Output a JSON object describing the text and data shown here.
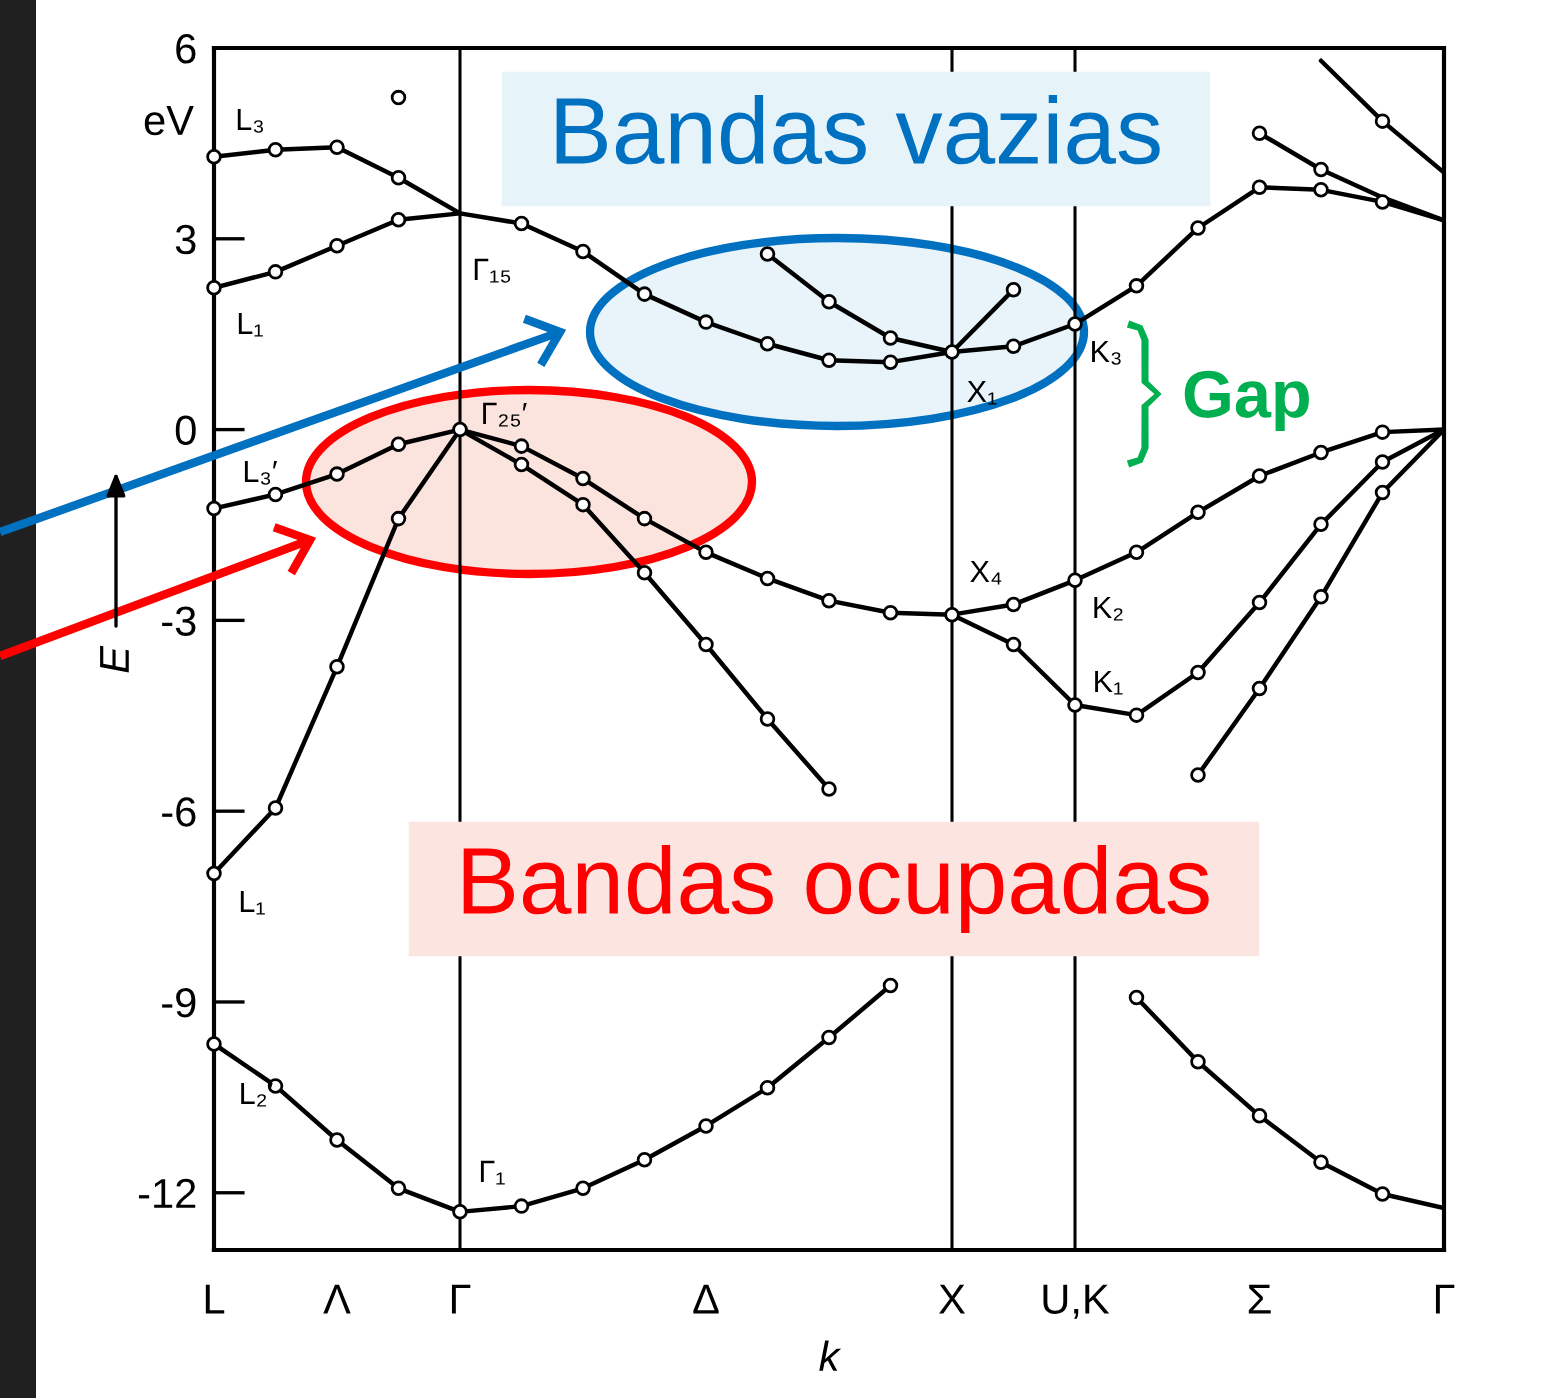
{
  "chart_data": {
    "type": "line",
    "xlabel": "k",
    "ylabel": "E",
    "categories": [
      "L",
      null,
      "Λ",
      null,
      "Γ",
      null,
      null,
      null,
      "Δ",
      null,
      null,
      null,
      "X",
      null,
      "U,K",
      null,
      null,
      "Σ",
      null,
      null,
      "Γ"
    ],
    "ylim": [
      -12.9,
      6
    ],
    "yticks": [
      -12,
      -9,
      -6,
      -3,
      0,
      3,
      6
    ],
    "ref_lines": [
      {
        "axis": "x",
        "value": "Γ",
        "color": "#000000"
      },
      {
        "axis": "x",
        "value": "X",
        "color": "#000000"
      },
      {
        "axis": "x",
        "value": "U,K",
        "color": "#000000"
      }
    ],
    "marker": "none",
    "line_style": "solid",
    "series": [
      {
        "color": "#000000",
        "values": [
          -9.66,
          -10.32,
          -11.17,
          -11.93,
          -12.3,
          -12.21,
          -11.93,
          -11.48,
          -10.95,
          -10.35,
          -9.56,
          -8.74,
          null,
          null,
          null,
          -8.93,
          -9.94,
          -10.79,
          -11.52,
          -12.02,
          -12.24
        ]
      },
      {
        "type": "scatter",
        "marker": "circle",
        "color": "#000000",
        "values": [
          -9.66,
          -10.32,
          -11.17,
          -11.93,
          -12.3,
          -12.21,
          -11.93,
          -11.48,
          -10.95,
          -10.35,
          -9.56,
          -8.74,
          null,
          null,
          null,
          -8.93,
          -9.94,
          -10.79,
          -11.52,
          -12.02,
          null
        ]
      },
      {
        "color": "#000000",
        "values": [
          -6.98,
          -5.95,
          -3.73,
          -1.4,
          0,
          -0.55,
          -1.18,
          -2.25,
          -3.38,
          -4.55,
          -5.65,
          null,
          null,
          null,
          null,
          null,
          -5.43,
          -4.07,
          -2.63,
          -0.99,
          0
        ]
      },
      {
        "type": "scatter",
        "marker": "circle",
        "color": "#000000",
        "values": [
          -6.98,
          -5.95,
          -3.73,
          -1.4,
          0,
          -0.55,
          -1.18,
          -2.25,
          -3.38,
          -4.55,
          -5.65,
          null,
          null,
          null,
          null,
          null,
          -5.43,
          -4.07,
          -2.63,
          -0.99,
          null
        ]
      },
      {
        "color": "#000000",
        "values": [
          -1.24,
          -1.02,
          -0.7,
          -0.23,
          0,
          -0.26,
          -0.77,
          -1.4,
          -1.93,
          -2.34,
          -2.69,
          -2.88,
          -2.91,
          -3.38,
          -4.33,
          -4.49,
          -3.82,
          -2.72,
          -1.49,
          -0.51,
          0
        ]
      },
      {
        "type": "scatter",
        "marker": "circle",
        "color": "#000000",
        "values": [
          -1.24,
          -1.02,
          -0.7,
          -0.23,
          null,
          -0.26,
          -0.77,
          -1.4,
          -1.93,
          -2.34,
          -2.69,
          -2.88,
          -2.91,
          -3.38,
          -4.33,
          -4.49,
          -3.82,
          -2.72,
          -1.49,
          -0.51,
          null
        ]
      },
      {
        "color": "#000000",
        "values": [
          null,
          null,
          null,
          null,
          null,
          null,
          null,
          null,
          null,
          null,
          null,
          null,
          -2.91,
          -2.75,
          -2.37,
          -1.93,
          -1.3,
          -0.73,
          -0.36,
          -0.04,
          0
        ]
      },
      {
        "type": "scatter",
        "marker": "circle",
        "color": "#000000",
        "values": [
          null,
          null,
          null,
          null,
          null,
          null,
          null,
          null,
          null,
          null,
          null,
          null,
          null,
          -2.75,
          -2.37,
          -1.93,
          -1.3,
          -0.73,
          -0.36,
          -0.04,
          null
        ]
      },
      {
        "color": "#000000",
        "values": [
          2.23,
          2.48,
          2.89,
          3.3,
          3.4,
          3.24,
          2.8,
          2.13,
          1.69,
          1.35,
          1.09,
          1.06,
          1.22,
          1.31,
          1.66,
          2.26,
          3.17,
          3.81,
          3.77,
          3.58,
          3.29
        ]
      },
      {
        "type": "scatter",
        "marker": "circle",
        "color": "#000000",
        "values": [
          2.23,
          2.48,
          2.89,
          3.3,
          null,
          3.24,
          2.8,
          2.13,
          1.69,
          1.35,
          1.09,
          1.06,
          1.22,
          1.31,
          1.66,
          2.26,
          3.17,
          3.81,
          3.77,
          3.58,
          null
        ]
      },
      {
        "color": "#000000",
        "values": [
          4.29,
          4.4,
          4.44,
          3.96,
          3.4,
          null,
          null,
          null,
          null,
          2.76,
          2.01,
          1.44,
          1.22,
          2.2,
          null,
          null,
          null,
          4.66,
          4.09,
          3.65,
          3.29
        ]
      },
      {
        "type": "scatter",
        "marker": "circle",
        "color": "#000000",
        "values": [
          4.29,
          4.4,
          4.44,
          3.96,
          null,
          null,
          null,
          null,
          null,
          2.76,
          2.01,
          1.44,
          null,
          2.2,
          null,
          null,
          null,
          4.66,
          4.09,
          null,
          null
        ]
      },
      {
        "color": "#000000",
        "values": [
          null,
          null,
          null,
          null,
          null,
          null,
          null,
          null,
          null,
          null,
          null,
          null,
          null,
          null,
          null,
          null,
          null,
          null,
          5.8,
          4.85,
          4.04
        ]
      },
      {
        "type": "scatter",
        "marker": "circle",
        "color": "#000000",
        "values": [
          null,
          null,
          null,
          5.22,
          null,
          null,
          null,
          null,
          null,
          null,
          null,
          null,
          null,
          null,
          null,
          null,
          null,
          null,
          null,
          4.85,
          null
        ]
      }
    ],
    "annotations": [
      "eV",
      "Bandas vazias",
      "Bandas ocupadas",
      "Gap",
      "L₃",
      "L₁",
      "Γ₁₅",
      "Γ₂₅′",
      "L₃′",
      "L₁",
      "L₂′",
      "Γ₁",
      "X₁",
      "X₄",
      "K₃",
      "K₂",
      "K₁"
    ]
  }
}
